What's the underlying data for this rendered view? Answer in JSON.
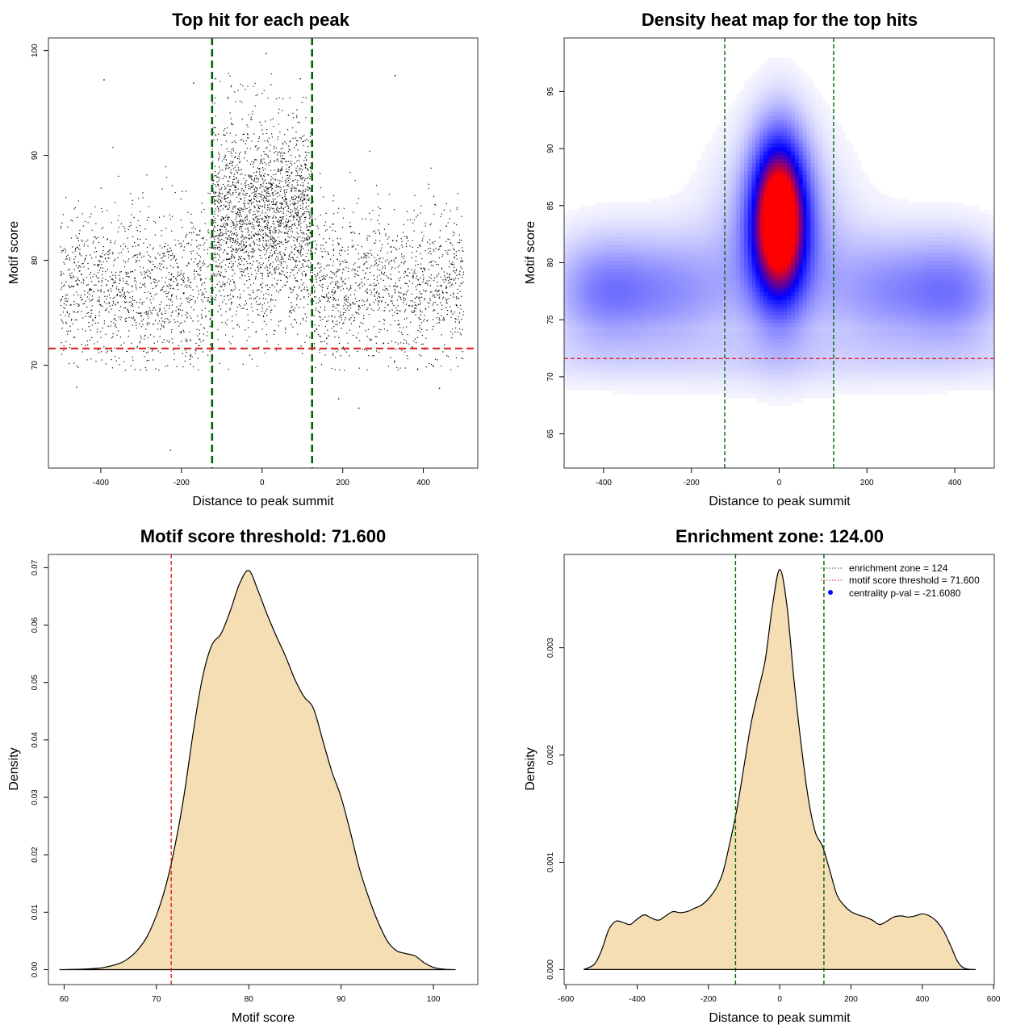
{
  "chart_data": [
    {
      "type": "scatter",
      "title": "Top hit for each peak",
      "xlabel": "Distance to peak summit",
      "ylabel": "Motif score",
      "xlim": [
        -530,
        535
      ],
      "ylim": [
        60.2,
        101.2
      ],
      "xticks": [
        -400,
        -200,
        0,
        200,
        400
      ],
      "yticks": [
        70,
        80,
        90,
        100
      ],
      "vlines": [
        -124,
        124
      ],
      "hline": 71.6,
      "vline_color": "#006400",
      "hline_color": "#dd2222",
      "point_color": "#000000",
      "point_density": [
        {
          "x_range": [
            -500,
            -124
          ],
          "y_center": 77.5,
          "y_sd": 3.8,
          "n": 1250
        },
        {
          "x_range": [
            -124,
            124
          ],
          "y_center": 84.0,
          "y_sd": 4.8,
          "n": 2300
        },
        {
          "x_range": [
            124,
            500
          ],
          "y_center": 77.5,
          "y_sd": 3.8,
          "n": 1250
        }
      ],
      "outliers": [
        {
          "x": -227,
          "y": 61.9
        },
        {
          "x": 10,
          "y": 99.7
        },
        {
          "x": -392,
          "y": 97.2
        },
        {
          "x": 330,
          "y": 97.6
        },
        {
          "x": 240,
          "y": 65.9
        },
        {
          "x": 190,
          "y": 66.8
        },
        {
          "x": -460,
          "y": 67.9
        },
        {
          "x": 440,
          "y": 67.8
        },
        {
          "x": -170,
          "y": 96.9
        },
        {
          "x": 95,
          "y": 97.3
        },
        {
          "x": -115,
          "y": 97.3
        }
      ]
    },
    {
      "type": "heatmap",
      "title": "Density heat map for the top hits",
      "xlabel": "Distance to peak summit",
      "ylabel": "Motif score",
      "xlim": [
        -490,
        490
      ],
      "ylim": [
        62,
        99.7
      ],
      "xticks": [
        -400,
        -200,
        0,
        200,
        400
      ],
      "yticks": [
        65,
        70,
        75,
        80,
        85,
        90,
        95
      ],
      "vlines": [
        -124,
        124
      ],
      "hline": 71.6,
      "colors": [
        "#ffffff",
        "#0000ff",
        "#ff0000"
      ],
      "density_components": [
        {
          "x": 0,
          "y": 84,
          "sx": 42,
          "sy": 4.8,
          "w": 1.0
        },
        {
          "x": 0,
          "y": 81.5,
          "sx": 95,
          "sy": 6.0,
          "w": 0.26
        },
        {
          "x": -400,
          "y": 77.5,
          "sx": 85,
          "sy": 3.3,
          "w": 0.27
        },
        {
          "x": 400,
          "y": 77.5,
          "sx": 85,
          "sy": 3.3,
          "w": 0.27
        },
        {
          "x": -230,
          "y": 77.5,
          "sx": 90,
          "sy": 3.5,
          "w": 0.2
        },
        {
          "x": 230,
          "y": 77.5,
          "sx": 90,
          "sy": 3.5,
          "w": 0.2
        }
      ]
    },
    {
      "type": "area",
      "title": "Motif score threshold: 71.600",
      "xlabel": "Motif score",
      "ylabel": "Density",
      "xlim": [
        58.3,
        104.8
      ],
      "ylim": [
        -0.0026,
        0.0723
      ],
      "xticks": [
        60,
        70,
        80,
        90,
        100
      ],
      "yticks": [
        0.0,
        0.01,
        0.02,
        0.03,
        0.04,
        0.05,
        0.06,
        0.07
      ],
      "ytick_labels": [
        "0.00",
        "0.01",
        "0.02",
        "0.03",
        "0.04",
        "0.05",
        "0.06",
        "0.07"
      ],
      "vline": 71.6,
      "fill_color": "#f5deb3",
      "x": [
        59.5,
        62,
        64,
        66,
        67,
        68,
        69,
        70,
        71,
        72,
        73,
        74,
        75,
        76,
        77,
        78,
        79,
        80,
        81,
        82,
        83,
        84,
        85,
        86,
        87,
        88,
        89,
        90,
        91,
        92,
        93,
        94,
        95,
        96,
        97,
        98,
        99,
        100,
        101,
        102.4
      ],
      "y": [
        0.0,
        0.0001,
        0.0003,
        0.0011,
        0.002,
        0.0035,
        0.0058,
        0.0095,
        0.0145,
        0.0215,
        0.0305,
        0.0415,
        0.051,
        0.0565,
        0.0585,
        0.0625,
        0.0672,
        0.0695,
        0.066,
        0.0618,
        0.058,
        0.0545,
        0.0505,
        0.0475,
        0.0455,
        0.04,
        0.0345,
        0.03,
        0.024,
        0.0175,
        0.0125,
        0.0083,
        0.005,
        0.0033,
        0.0028,
        0.0024,
        0.0012,
        0.0004,
        0.0001,
        0.0
      ]
    },
    {
      "type": "area",
      "title": "Enrichment zone: 124.00",
      "xlabel": "Distance to peak summit",
      "ylabel": "Density",
      "xlim": [
        -605,
        602
      ],
      "ylim": [
        -0.00014,
        0.00387
      ],
      "xticks": [
        -600,
        -400,
        -200,
        0,
        200,
        400,
        600
      ],
      "yticks": [
        0.0,
        0.001,
        0.002,
        0.003
      ],
      "ytick_labels": [
        "0.000",
        "0.001",
        "0.002",
        "0.003"
      ],
      "vlines": [
        -124,
        124
      ],
      "fill_color": "#f5deb3",
      "x": [
        -550,
        -520,
        -500,
        -480,
        -460,
        -440,
        -420,
        -400,
        -380,
        -360,
        -340,
        -320,
        -300,
        -280,
        -260,
        -240,
        -220,
        -200,
        -180,
        -160,
        -140,
        -120,
        -100,
        -80,
        -60,
        -40,
        -20,
        0,
        20,
        40,
        60,
        80,
        100,
        120,
        140,
        160,
        180,
        200,
        220,
        240,
        260,
        280,
        300,
        320,
        340,
        360,
        380,
        400,
        420,
        440,
        460,
        480,
        500,
        520,
        550
      ],
      "y": [
        0.0,
        5e-05,
        0.00018,
        0.00037,
        0.00045,
        0.00044,
        0.00042,
        0.00047,
        0.00051,
        0.00048,
        0.00046,
        0.0005,
        0.00054,
        0.00053,
        0.00054,
        0.00057,
        0.0006,
        0.00066,
        0.00075,
        0.0009,
        0.00118,
        0.0015,
        0.0019,
        0.0023,
        0.0026,
        0.0029,
        0.0034,
        0.00373,
        0.0034,
        0.0027,
        0.0021,
        0.0016,
        0.00128,
        0.00115,
        0.00093,
        0.0007,
        0.0006,
        0.00054,
        0.00051,
        0.00049,
        0.00046,
        0.00042,
        0.00045,
        0.00049,
        0.0005,
        0.00049,
        0.0005,
        0.00052,
        0.0005,
        0.00045,
        0.00036,
        0.00022,
        7e-05,
        1e-05,
        0.0
      ]
    }
  ],
  "legend": {
    "items": [
      {
        "label": "enrichment zone = 124",
        "symbol": "dotted-line",
        "color": "#006400"
      },
      {
        "label": "motif score threshold = 71.600",
        "symbol": "dotted-line",
        "color": "#dd2222"
      },
      {
        "label": "centrality p-val = -21.6080",
        "symbol": "dot",
        "color": "#0000ff"
      }
    ]
  }
}
